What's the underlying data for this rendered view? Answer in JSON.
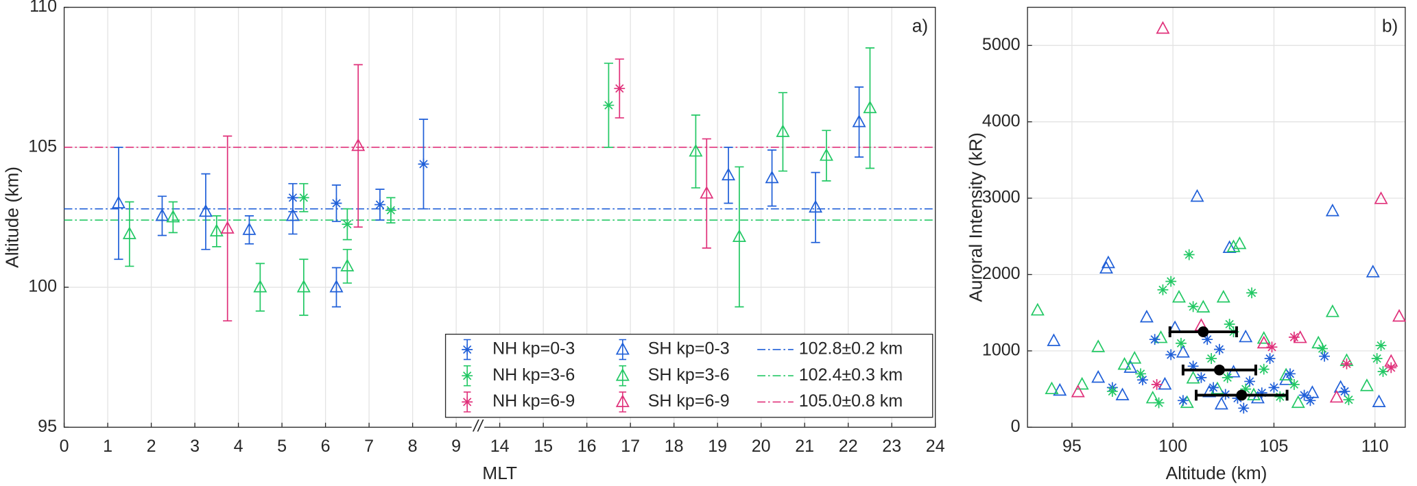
{
  "chart_data": [
    {
      "type": "errorbar",
      "panel_label": "a)",
      "xlabel": "MLT",
      "ylabel": "Altitude (km)",
      "xlim": [
        0,
        24
      ],
      "ylim": [
        95,
        110
      ],
      "xticks": [
        0,
        1,
        2,
        3,
        4,
        5,
        6,
        7,
        8,
        9,
        14,
        15,
        16,
        17,
        18,
        19,
        20,
        21,
        22,
        23,
        24
      ],
      "yticks": [
        95,
        100,
        105,
        110
      ],
      "axis_break": [
        9.5,
        13.5
      ],
      "break_label": "//",
      "grid": true,
      "legend_location": "southeast",
      "series": [
        {
          "name": "NH kp=0-3",
          "color": "#1f5fd8",
          "marker": "asterisk",
          "x": [
            5.25,
            6.25,
            7.25,
            8.25
          ],
          "values": [
            103.2,
            103.0,
            102.95,
            104.4
          ],
          "errors": [
            0.5,
            0.65,
            0.55,
            1.6
          ]
        },
        {
          "name": "NH kp=3-6",
          "color": "#22c864",
          "marker": "asterisk",
          "x": [
            5.5,
            6.5,
            7.5,
            16.5
          ],
          "values": [
            103.2,
            102.25,
            102.75,
            106.5
          ],
          "errors": [
            0.5,
            0.55,
            0.45,
            1.5
          ]
        },
        {
          "name": "NH kp=6-9",
          "color": "#e0307a",
          "marker": "asterisk",
          "x": [
            16.75
          ],
          "values": [
            107.1
          ],
          "errors": [
            1.05
          ]
        },
        {
          "name": "SH kp=0-3",
          "color": "#1f5fd8",
          "marker": "triangle",
          "x": [
            1.25,
            2.25,
            3.25,
            4.25,
            5.25,
            6.25,
            19.25,
            20.25,
            21.25,
            22.25
          ],
          "values": [
            103.0,
            102.55,
            102.7,
            102.05,
            102.55,
            100.0,
            104.0,
            103.9,
            102.85,
            105.9
          ],
          "errors": [
            2.0,
            0.7,
            1.35,
            0.5,
            0.65,
            0.7,
            1.0,
            1.0,
            1.25,
            1.25
          ]
        },
        {
          "name": "SH kp=3-6",
          "color": "#22c864",
          "marker": "triangle",
          "x": [
            1.5,
            2.5,
            3.5,
            4.5,
            5.5,
            6.5,
            18.5,
            19.5,
            20.5,
            21.5,
            22.5
          ],
          "values": [
            101.9,
            102.5,
            102.0,
            100.0,
            100.0,
            100.75,
            104.85,
            101.8,
            105.55,
            104.7,
            106.4
          ],
          "errors": [
            1.15,
            0.55,
            0.55,
            0.85,
            1.0,
            0.6,
            1.3,
            2.5,
            1.4,
            0.9,
            2.15
          ]
        },
        {
          "name": "SH kp=6-9",
          "color": "#e0307a",
          "marker": "triangle",
          "x": [
            3.75,
            6.75,
            18.75
          ],
          "values": [
            102.1,
            105.05,
            103.35
          ],
          "errors": [
            3.3,
            2.9,
            1.95
          ]
        }
      ],
      "ref_lines": [
        {
          "label": "102.8±0.2 km",
          "value": 102.8,
          "color": "#1f5fd8"
        },
        {
          "label": "102.4±0.3 km",
          "value": 102.4,
          "color": "#22c864"
        },
        {
          "label": "105.0±0.8 km",
          "value": 105.0,
          "color": "#e0307a"
        }
      ]
    },
    {
      "type": "scatter",
      "panel_label": "b)",
      "xlabel": "Altitude (km)",
      "ylabel": "Auroral Intensity (kR)",
      "xlim": [
        92.8,
        111.5
      ],
      "ylim": [
        0,
        5500
      ],
      "xticks": [
        95,
        100,
        105,
        110
      ],
      "yticks": [
        0,
        1000,
        2000,
        3000,
        4000,
        5000
      ],
      "grid": true,
      "series": [
        {
          "color": "#1f5fd8",
          "marker": "triangle",
          "x": [
            94.1,
            94.4,
            96.8,
            96.7,
            98.7,
            101.2,
            102.8,
            107.9,
            109.9,
            110.2,
            96.3,
            97.5,
            99.6,
            100.5,
            101.8,
            103.0,
            104.2,
            105.6,
            106.9,
            108.3,
            100.1,
            103.6,
            97.9,
            102.4
          ],
          "values": [
            1130,
            480,
            2150,
            2080,
            1440,
            3020,
            2350,
            2830,
            2030,
            330,
            650,
            420,
            560,
            980,
            460,
            720,
            380,
            620,
            450,
            520,
            1300,
            1180,
            780,
            300
          ]
        },
        {
          "color": "#22c864",
          "marker": "triangle",
          "x": [
            93.3,
            94.0,
            95.5,
            96.3,
            97.6,
            99.4,
            100.3,
            101.5,
            102.5,
            103.3,
            103.0,
            107.9,
            104.5,
            105.6,
            106.2,
            107.2,
            108.6,
            109.6,
            99.0,
            101.0,
            102.2,
            104.0,
            98.1,
            100.7
          ],
          "values": [
            1530,
            500,
            560,
            1050,
            820,
            1170,
            1700,
            1570,
            1700,
            2400,
            2360,
            1510,
            1160,
            680,
            320,
            1100,
            870,
            540,
            380,
            640,
            500,
            420,
            900,
            320
          ]
        },
        {
          "color": "#e0307a",
          "marker": "triangle",
          "x": [
            99.5,
            110.3,
            111.2,
            110.8,
            106.3,
            101.4,
            95.3,
            104.5,
            108.1
          ],
          "values": [
            5220,
            2990,
            1450,
            860,
            1170,
            1330,
            460,
            1100,
            390
          ]
        },
        {
          "color": "#1f5fd8",
          "marker": "asterisk",
          "x": [
            99.1,
            99.9,
            101.0,
            101.4,
            102.0,
            102.6,
            103.2,
            103.8,
            104.4,
            105.0,
            105.8,
            106.5,
            107.5,
            108.5,
            100.5,
            98.5,
            97.0,
            102.3,
            103.5,
            104.8,
            101.7,
            106.8
          ],
          "values": [
            1150,
            950,
            800,
            650,
            520,
            430,
            380,
            600,
            450,
            520,
            700,
            420,
            930,
            470,
            350,
            620,
            520,
            1020,
            250,
            900,
            1150,
            350
          ]
        },
        {
          "color": "#22c864",
          "marker": "asterisk",
          "x": [
            99.5,
            99.9,
            100.8,
            101.0,
            103.9,
            102.8,
            100.4,
            101.9,
            102.7,
            103.6,
            104.5,
            105.3,
            106.0,
            107.4,
            108.7,
            110.3,
            110.1,
            110.4,
            97.0,
            98.4,
            99.3,
            103.0
          ],
          "values": [
            1800,
            1910,
            2260,
            1580,
            1760,
            1350,
            1100,
            900,
            650,
            500,
            760,
            400,
            560,
            1030,
            360,
            1070,
            900,
            730,
            470,
            700,
            320,
            1250
          ]
        },
        {
          "color": "#e0307a",
          "marker": "asterisk",
          "x": [
            104.9,
            108.6,
            106.0,
            99.2,
            110.8
          ],
          "values": [
            1050,
            830,
            1180,
            560,
            780
          ]
        },
        {
          "color": "#000000",
          "marker": "dot",
          "x": [
            101.5,
            102.3,
            103.4
          ],
          "values": [
            1250,
            750,
            420
          ],
          "xerrors": [
            1.65,
            1.8,
            2.25
          ]
        }
      ]
    }
  ]
}
